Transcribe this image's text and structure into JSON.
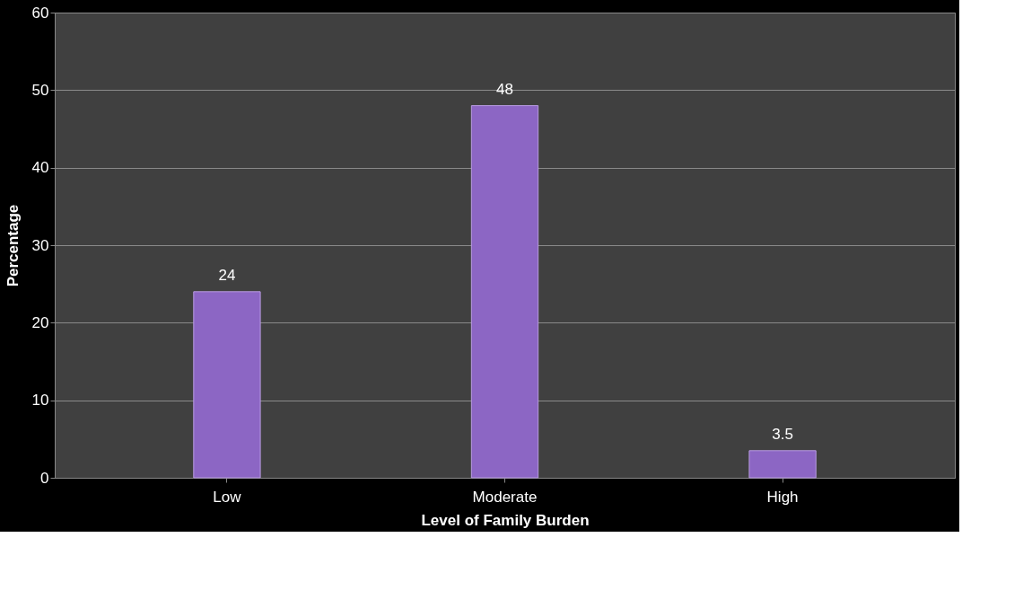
{
  "chart_data": {
    "type": "bar",
    "xlabel": "Level of Family Burden",
    "ylabel": "Percentage",
    "categories": [
      "Low",
      "Moderate",
      "High"
    ],
    "values": [
      24,
      48,
      3.5
    ],
    "color": "#8c66c4",
    "ylim": [
      0,
      60
    ],
    "yticks": [
      0,
      10,
      20,
      30,
      40,
      50,
      60
    ],
    "grid": "y",
    "data_labels": true
  }
}
